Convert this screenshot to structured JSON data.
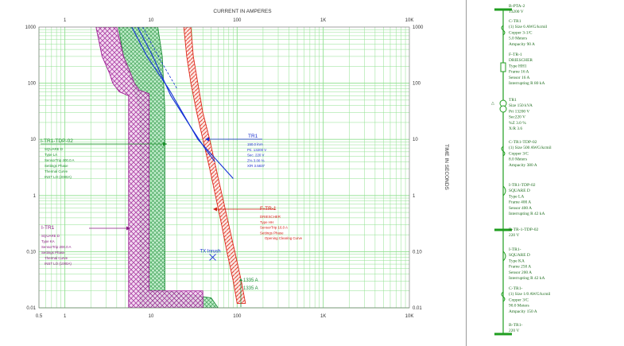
{
  "colors": {
    "grid": "#8fe08f",
    "bus": "#1f9e1f",
    "trip_unit": "#9d1f95",
    "ls_trip": "#1f8f3a",
    "fuse": "#e0281a",
    "transformer": "#1432d6",
    "legend_text_ls": "#1a8f2a",
    "legend_text_tr": "#1c2fd0",
    "legend_text_ftr": "#d41e12",
    "legend_text_itr": "#8a1a82"
  },
  "header": {
    "title": "CURRENT IN AMPERES"
  },
  "y_axis_title": "TIME IN SECONDS",
  "axes": {
    "x_top_ticks": [
      "1",
      "10",
      "100",
      "1K",
      "10K"
    ],
    "x_bottom_ticks": [
      "0.5",
      "1",
      "10",
      "100",
      "1K",
      "10K"
    ],
    "y_left_ticks": [
      "1000",
      "100",
      "10",
      "1",
      "0.10",
      "0.01"
    ],
    "y_right_ticks": [
      "1000",
      "100",
      "10",
      "1",
      "0.10",
      "0.01"
    ]
  },
  "chart_data": {
    "type": "line",
    "x_scale": "log",
    "y_scale": "log",
    "xlabel": "CURRENT IN AMPERES",
    "ylabel": "TIME IN SECONDS",
    "xlim": [
      0.5,
      10000
    ],
    "ylim": [
      0.01,
      1000
    ],
    "grid": true,
    "series": [
      {
        "name": "I-TR1-TDP-02",
        "kind": "breaker band",
        "left": [
          [
            4.2,
            1000
          ],
          [
            4.8,
            300
          ],
          [
            6.0,
            100
          ],
          [
            7.5,
            35
          ],
          [
            7.5,
            0.1
          ],
          [
            7.5,
            0.01
          ]
        ],
        "right": [
          [
            12,
            1000
          ],
          [
            13.5,
            300
          ],
          [
            14,
            100
          ],
          [
            14.5,
            35
          ],
          [
            14.5,
            0.02
          ],
          [
            50,
            0.015
          ],
          [
            60,
            0.01
          ]
        ]
      },
      {
        "name": "I-TR1",
        "kind": "breaker band",
        "left": [
          [
            2.3,
            1000
          ],
          [
            2.7,
            300
          ],
          [
            3.3,
            150
          ],
          [
            3.6,
            100
          ],
          [
            4.3,
            70
          ],
          [
            5.5,
            60
          ],
          [
            5.5,
            0.01
          ]
        ],
        "right": [
          [
            4,
            1000
          ],
          [
            4.8,
            300
          ],
          [
            5.8,
            150
          ],
          [
            6.4,
            100
          ],
          [
            7.3,
            75
          ],
          [
            9.5,
            65
          ],
          [
            9.5,
            0.02
          ],
          [
            40,
            0.02
          ],
          [
            40,
            0.01
          ]
        ]
      },
      {
        "name": "F-TR-1",
        "kind": "fuse band",
        "left": [
          [
            24,
            1000
          ],
          [
            26,
            300
          ],
          [
            29,
            100
          ],
          [
            34,
            30
          ],
          [
            40,
            10
          ],
          [
            48,
            3
          ],
          [
            56,
            1
          ],
          [
            66,
            0.3
          ],
          [
            76,
            0.1
          ],
          [
            90,
            0.03
          ],
          [
            100,
            0.012
          ]
        ],
        "right": [
          [
            29,
            1000
          ],
          [
            31,
            300
          ],
          [
            35,
            100
          ],
          [
            40,
            30
          ],
          [
            48,
            10
          ],
          [
            57,
            3
          ],
          [
            67,
            1
          ],
          [
            80,
            0.3
          ],
          [
            94,
            0.1
          ],
          [
            112,
            0.03
          ],
          [
            125,
            0.012
          ]
        ]
      },
      {
        "name": "TR1",
        "kind": "damage curve",
        "upper": [
          [
            6,
            1000
          ],
          [
            9,
            300
          ],
          [
            16,
            80
          ],
          [
            35,
            10
          ],
          [
            60,
            4
          ],
          [
            90,
            2
          ]
        ],
        "lower": [
          [
            7,
            1000
          ],
          [
            10.5,
            300
          ],
          [
            17,
            60
          ],
          [
            28,
            18
          ],
          [
            42,
            7
          ],
          [
            55,
            4
          ]
        ]
      },
      {
        "name": "TX Inrush",
        "kind": "point",
        "points": [
          [
            52,
            0.1
          ]
        ]
      },
      {
        "name": "1335 A",
        "kind": "marker",
        "points": [
          [
            100,
            0.012
          ]
        ]
      }
    ],
    "annotations": [
      {
        "label": "I-TR1-TDP-02",
        "lines": [
          "SQUARE D",
          "Type LA",
          "SensorTrip 400.0 A",
          "Settings Phase",
          "Thermal Curve",
          "INST LO (2000A)"
        ]
      },
      {
        "label": "TR1",
        "lines": [
          "150.0 kVA",
          "Pri. 13200 V",
          "Sec. 220 V",
          "Z% 3.00 %",
          "X/R 3.5837"
        ]
      },
      {
        "label": "F-TR-1",
        "lines": [
          "DRIESCHER",
          "Type HH",
          "SensorTrip 16.0 A",
          "Settings Phase",
          "Opening Clearing Curve"
        ]
      },
      {
        "label": "I-TR1",
        "lines": [
          "SQUARE D",
          "Type KA",
          "SensorTrip 200.0 A",
          "Settings Phase",
          "Thermal Curve",
          "INST LO (1000A)"
        ]
      },
      {
        "label": "TX Inrush",
        "lines": []
      },
      {
        "label": "1335 A",
        "lines": []
      },
      {
        "label": "1335 A",
        "lines": []
      }
    ]
  },
  "oneline": {
    "items": [
      {
        "title": "B-PTA-2",
        "lines": [
          "13200 V"
        ]
      },
      {
        "title": "C-TR1",
        "lines": [
          "(1) Size 6 AWG/kcmil",
          "Copper 3-1/C",
          "5.0 Meters",
          "Ampacity 90 A"
        ]
      },
      {
        "title": "F-TR-1",
        "lines": [
          "DRIESCHER",
          "Type HH1",
          "Frame 16 A",
          "Sensor 16 A",
          "Interrupting R 80 kA"
        ]
      },
      {
        "title": "TR1",
        "lines": [
          "Size 150 kVA",
          "Pri 13200 V",
          "Sec220 V",
          "%Z 3.0 %",
          "X/R 3.6"
        ]
      },
      {
        "title": "C-TR1-TDP-02",
        "lines": [
          "(1) Size 500 AWG/kcmil",
          "Copper 3/C",
          "8.0 Meters",
          "Ampacity 380 A"
        ]
      },
      {
        "title": "I-TR1-TDP-02",
        "lines": [
          "SQUARE D",
          "Type LA",
          "Frame 400 A",
          "Sensor 400 A",
          "Interrupting R 42 kA"
        ]
      },
      {
        "title": "B-TR-1-TDP-02",
        "lines": [
          "220 V"
        ]
      },
      {
        "title": "I-TR1-",
        "lines": [
          "SQUARE D",
          "Type KA",
          "Frame 250 A",
          "Sensor 200 A",
          "Interrupting R 42 kA"
        ]
      },
      {
        "title": "C-TR1-",
        "lines": [
          "(1) Size 1/0 AWG/kcmil",
          "Copper 3/C",
          "90.0 Meters",
          "Ampacity 150 A"
        ]
      },
      {
        "title": "B-TR1-",
        "lines": [
          "220 V"
        ]
      }
    ]
  }
}
